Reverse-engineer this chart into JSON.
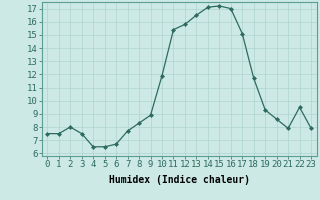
{
  "x": [
    0,
    1,
    2,
    3,
    4,
    5,
    6,
    7,
    8,
    9,
    10,
    11,
    12,
    13,
    14,
    15,
    16,
    17,
    18,
    19,
    20,
    21,
    22,
    23
  ],
  "y": [
    7.5,
    7.5,
    8.0,
    7.5,
    6.5,
    6.5,
    6.7,
    7.7,
    8.3,
    8.9,
    11.9,
    15.4,
    15.8,
    16.5,
    17.1,
    17.2,
    17.0,
    15.1,
    11.7,
    9.3,
    8.6,
    7.9,
    9.5,
    7.9
  ],
  "line_color": "#2e6b5e",
  "marker": "D",
  "marker_size": 2.0,
  "bg_color": "#cce9e5",
  "grid_color": "#aed4cf",
  "xlabel": "Humidex (Indice chaleur)",
  "xlim": [
    -0.5,
    23.5
  ],
  "ylim": [
    5.8,
    17.5
  ],
  "yticks": [
    6,
    7,
    8,
    9,
    10,
    11,
    12,
    13,
    14,
    15,
    16,
    17
  ],
  "xtick_labels": [
    "0",
    "1",
    "2",
    "3",
    "4",
    "5",
    "6",
    "7",
    "8",
    "9",
    "10",
    "11",
    "12",
    "13",
    "14",
    "15",
    "16",
    "17",
    "18",
    "19",
    "20",
    "21",
    "22",
    "23"
  ],
  "xlabel_fontsize": 7,
  "tick_fontsize": 6.5,
  "lw": 0.9
}
